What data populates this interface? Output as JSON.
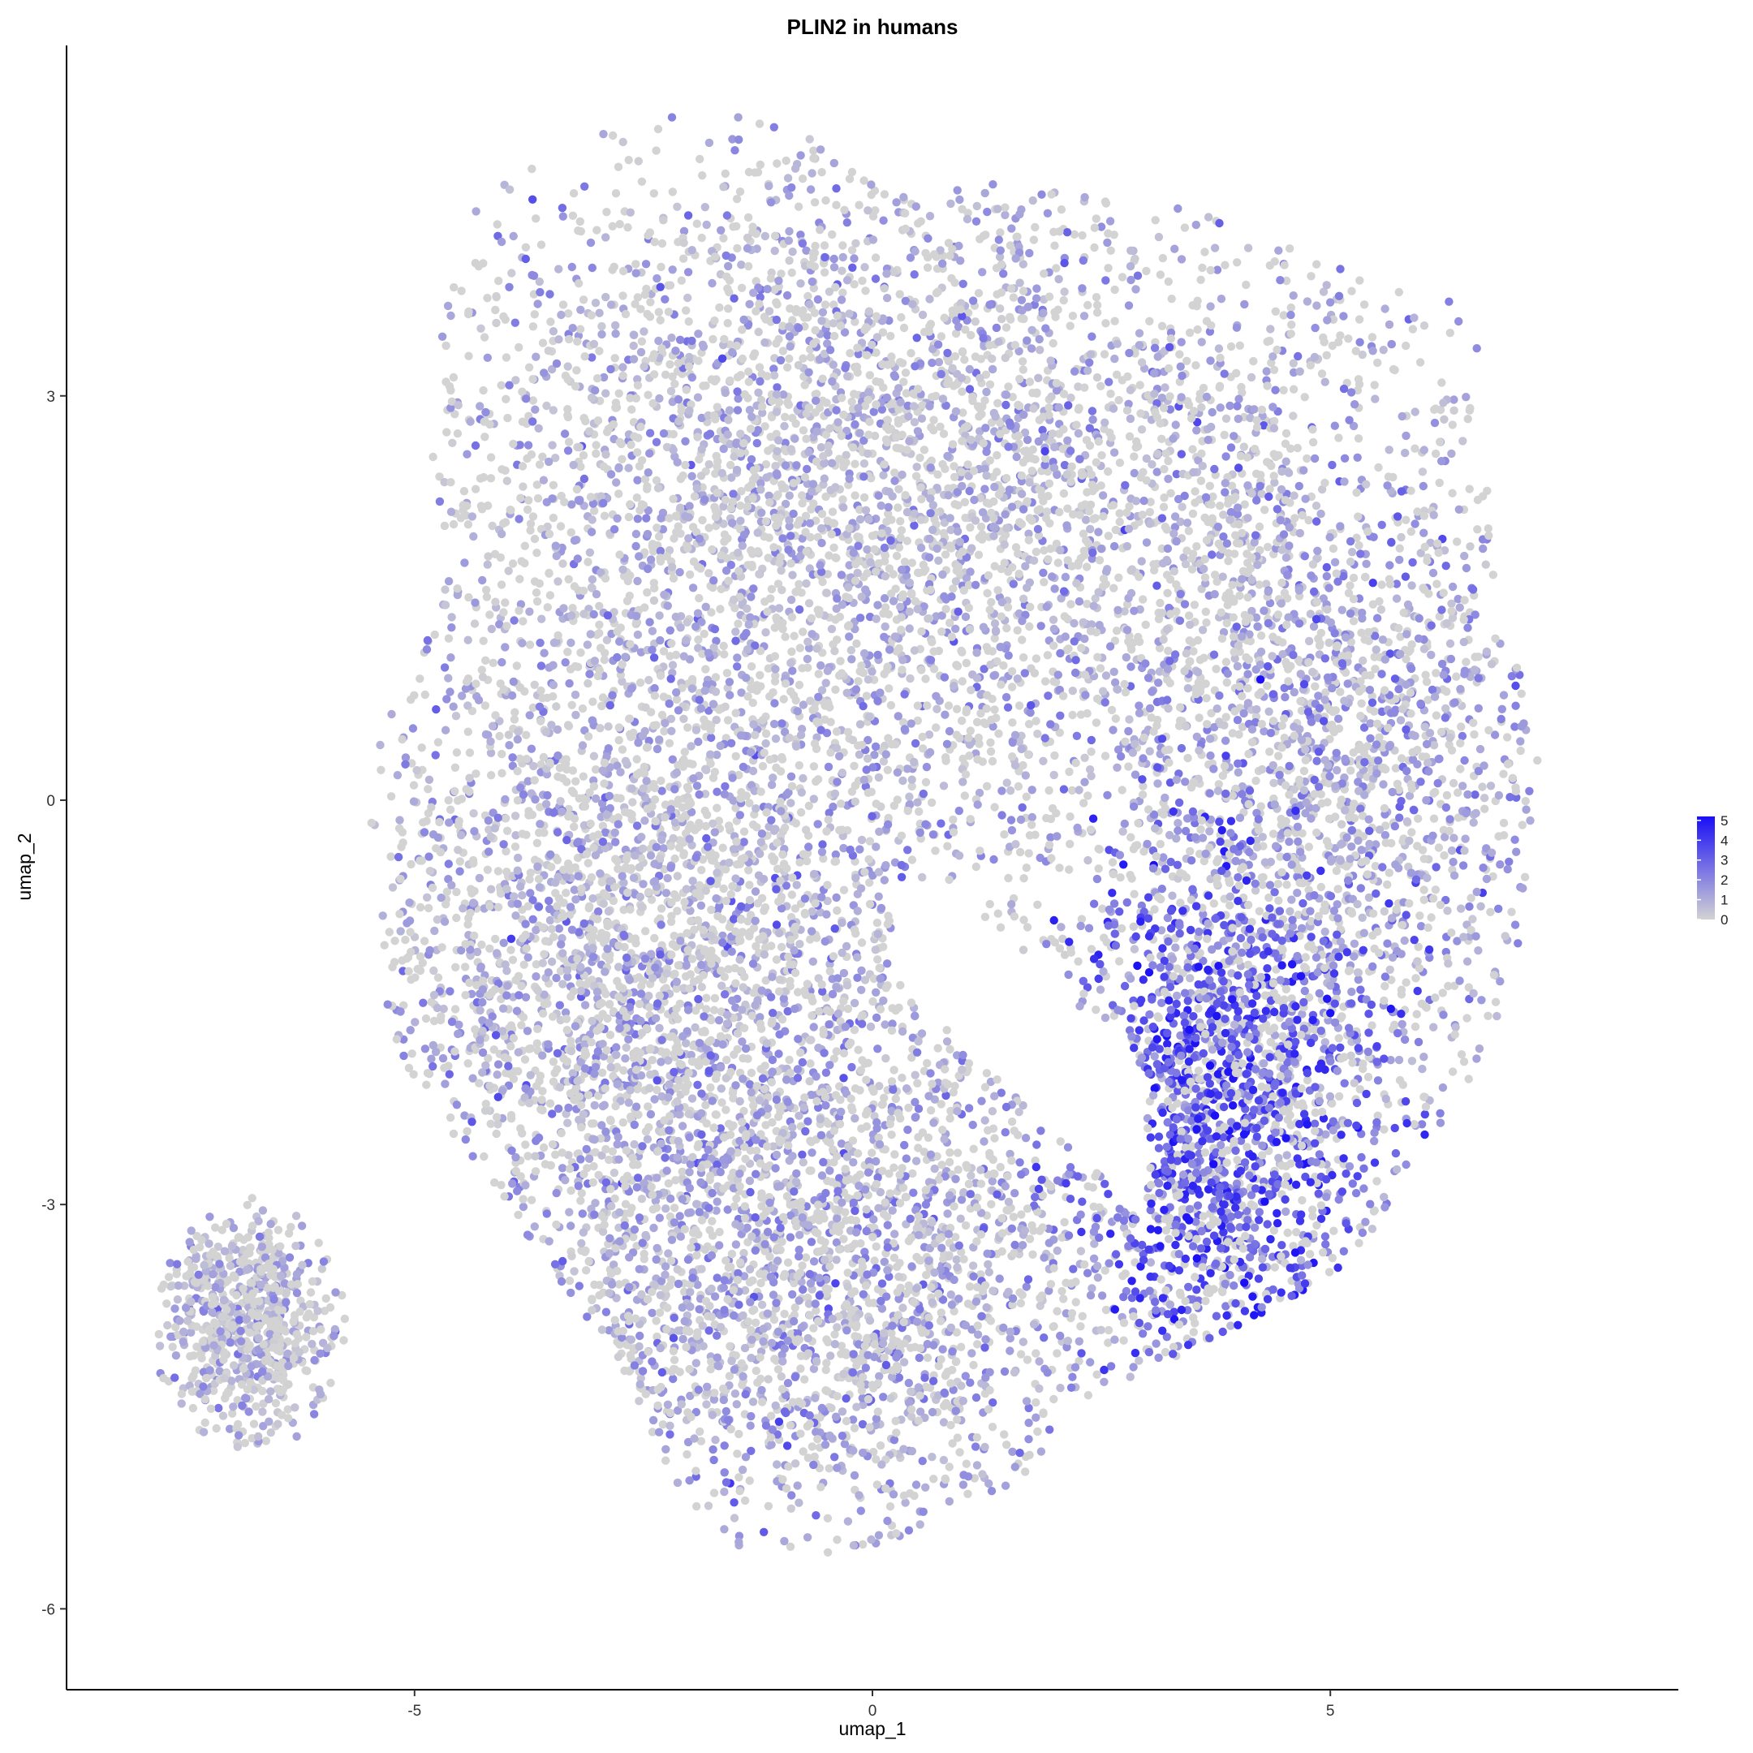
{
  "chart_data": {
    "type": "scatter",
    "title": "PLIN2 in humans",
    "xlabel": "umap_1",
    "ylabel": "umap_2",
    "xlim": [
      -8.8,
      8.8
    ],
    "ylim": [
      -6.6,
      5.6
    ],
    "xticks": [
      -5,
      0,
      5
    ],
    "yticks": [
      3,
      0,
      -3,
      -6
    ],
    "xtick_labels": [
      "-5",
      "0",
      "5"
    ],
    "ytick_labels": [
      "3",
      "0",
      "-3",
      "-6"
    ],
    "grid": false,
    "color_scale": {
      "low": "#d3d3d3",
      "high": "#1a0ff5",
      "min": 0,
      "max": 5.2
    },
    "legend": {
      "position": "right",
      "ticks": [
        "5",
        "4",
        "3",
        "2",
        "1",
        "0"
      ],
      "tick_values": [
        5,
        4,
        3,
        2,
        1,
        0
      ]
    },
    "point_count_estimate": 14000,
    "regions": [
      {
        "name": "main-upper",
        "center": [
          -0.2,
          2.3
        ],
        "spread": [
          3.4,
          1.7
        ],
        "n": 4200,
        "mean_expression": 0.9
      },
      {
        "name": "main-right",
        "center": [
          5.0,
          0.3
        ],
        "spread": [
          1.7,
          2.2
        ],
        "n": 2200,
        "mean_expression": 1.3
      },
      {
        "name": "main-middle",
        "center": [
          -2.5,
          -1.2
        ],
        "spread": [
          2.3,
          1.4
        ],
        "n": 2600,
        "mean_expression": 1.1
      },
      {
        "name": "main-lower",
        "center": [
          -0.5,
          -3.6
        ],
        "spread": [
          2.4,
          1.2
        ],
        "n": 2300,
        "mean_expression": 1.2
      },
      {
        "name": "high-expression-cluster",
        "center": [
          3.8,
          -2.4
        ],
        "spread": [
          1.0,
          1.3
        ],
        "n": 1400,
        "mean_expression": 2.7
      },
      {
        "name": "left-island",
        "center": [
          -6.8,
          -3.9
        ],
        "spread": [
          0.6,
          0.55
        ],
        "n": 700,
        "mean_expression": 0.9
      }
    ]
  }
}
